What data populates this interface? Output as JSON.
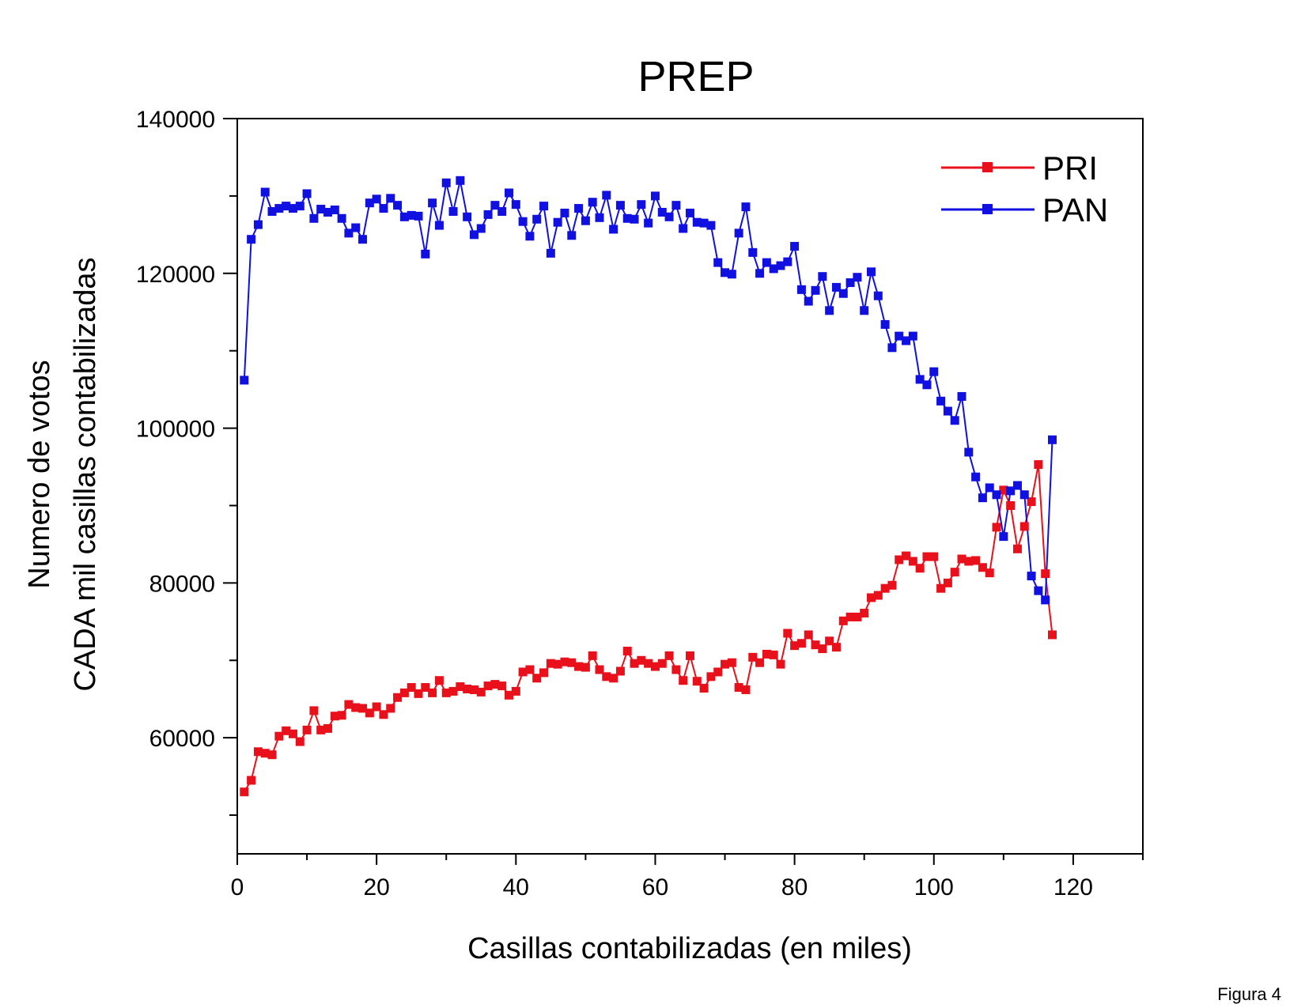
{
  "chart_data": {
    "type": "line",
    "title": "PREP",
    "xlabel": "Casillas contabilizadas (en miles)",
    "ylabel_line1": "Numero de votos",
    "ylabel_line2": "CADA mil casillas contabilizadas",
    "xlim": [
      0,
      130
    ],
    "ylim": [
      45000,
      140000
    ],
    "x_ticks": [
      0,
      20,
      40,
      60,
      80,
      100,
      120
    ],
    "y_ticks": [
      60000,
      80000,
      100000,
      120000,
      140000
    ],
    "y_minor_ticks": [
      50000,
      70000,
      90000,
      110000,
      130000
    ],
    "legend_position": "top-right",
    "grid": false,
    "x": [
      1,
      2,
      3,
      4,
      5,
      6,
      7,
      8,
      9,
      10,
      11,
      12,
      13,
      14,
      15,
      16,
      17,
      18,
      19,
      20,
      21,
      22,
      23,
      24,
      25,
      26,
      27,
      28,
      29,
      30,
      31,
      32,
      33,
      34,
      35,
      36,
      37,
      38,
      39,
      40,
      41,
      42,
      43,
      44,
      45,
      46,
      47,
      48,
      49,
      50,
      51,
      52,
      53,
      54,
      55,
      56,
      57,
      58,
      59,
      60,
      61,
      62,
      63,
      64,
      65,
      66,
      67,
      68,
      69,
      70,
      71,
      72,
      73,
      74,
      75,
      76,
      77,
      78,
      79,
      80,
      81,
      82,
      83,
      84,
      85,
      86,
      87,
      88,
      89,
      90,
      91,
      92,
      93,
      94,
      95,
      96,
      97,
      98,
      99,
      100,
      101,
      102,
      103,
      104,
      105,
      106,
      107,
      108,
      109,
      110,
      111,
      112,
      113,
      114,
      115,
      116,
      117
    ],
    "series": [
      {
        "name": "PRI",
        "color": "#e8101a",
        "values": [
          53000,
          54500,
          58200,
          58000,
          57800,
          60200,
          60900,
          60500,
          59500,
          61000,
          63500,
          61000,
          61200,
          62800,
          62900,
          64300,
          63900,
          63800,
          63200,
          64000,
          63000,
          63800,
          65200,
          65800,
          66500,
          65700,
          66500,
          65800,
          67400,
          65800,
          66000,
          66600,
          66300,
          66200,
          65900,
          66700,
          66900,
          66700,
          65500,
          66000,
          68500,
          68800,
          67700,
          68400,
          69600,
          69500,
          69800,
          69700,
          69200,
          69100,
          70600,
          68800,
          67900,
          67700,
          68600,
          71200,
          69600,
          70000,
          69600,
          69200,
          69600,
          70600,
          68800,
          67400,
          70600,
          67300,
          66400,
          67900,
          68500,
          69500,
          69700,
          66500,
          66200,
          70400,
          69700,
          70800,
          70700,
          69500,
          73500,
          71900,
          72200,
          73300,
          72000,
          71500,
          72500,
          71700,
          75100,
          75600,
          75600,
          76100,
          78100,
          78400,
          79300,
          79700,
          83000,
          83500,
          82800,
          81900,
          83400,
          83400,
          79300,
          80000,
          81400,
          83100,
          82800,
          82900,
          82000,
          81300,
          87200,
          92000,
          90000,
          84400,
          87300,
          90500,
          95300,
          81200,
          73300
        ]
      },
      {
        "name": "PAN",
        "color": "#1010e0",
        "values": [
          106200,
          124400,
          126300,
          130500,
          128000,
          128400,
          128700,
          128400,
          128700,
          130300,
          127100,
          128300,
          127900,
          128200,
          127100,
          125200,
          125900,
          124400,
          129100,
          129600,
          128400,
          129700,
          128800,
          127300,
          127500,
          127400,
          122500,
          129100,
          126200,
          131700,
          128000,
          132000,
          127300,
          125000,
          125800,
          127600,
          128800,
          128000,
          130400,
          128900,
          126700,
          124800,
          127000,
          128700,
          122600,
          126600,
          127800,
          124900,
          128400,
          126800,
          129200,
          127200,
          130100,
          125700,
          128800,
          127100,
          127000,
          128900,
          126500,
          130000,
          127900,
          127300,
          128800,
          125800,
          127800,
          126600,
          126500,
          126200,
          121400,
          120100,
          119900,
          125200,
          128600,
          122700,
          120000,
          121400,
          120600,
          121000,
          121500,
          123500,
          117900,
          116400,
          117800,
          119600,
          115200,
          118200,
          117400,
          118800,
          119500,
          115200,
          120200,
          117100,
          113400,
          110400,
          111900,
          111300,
          111900,
          106300,
          105600,
          107300,
          103500,
          102200,
          101000,
          104100,
          96900,
          93700,
          91000,
          92300,
          91400,
          86000,
          91900,
          92600,
          91400,
          80900,
          79000,
          77800,
          98500
        ]
      }
    ]
  },
  "footer": {
    "figure_label": "Figura 4"
  }
}
